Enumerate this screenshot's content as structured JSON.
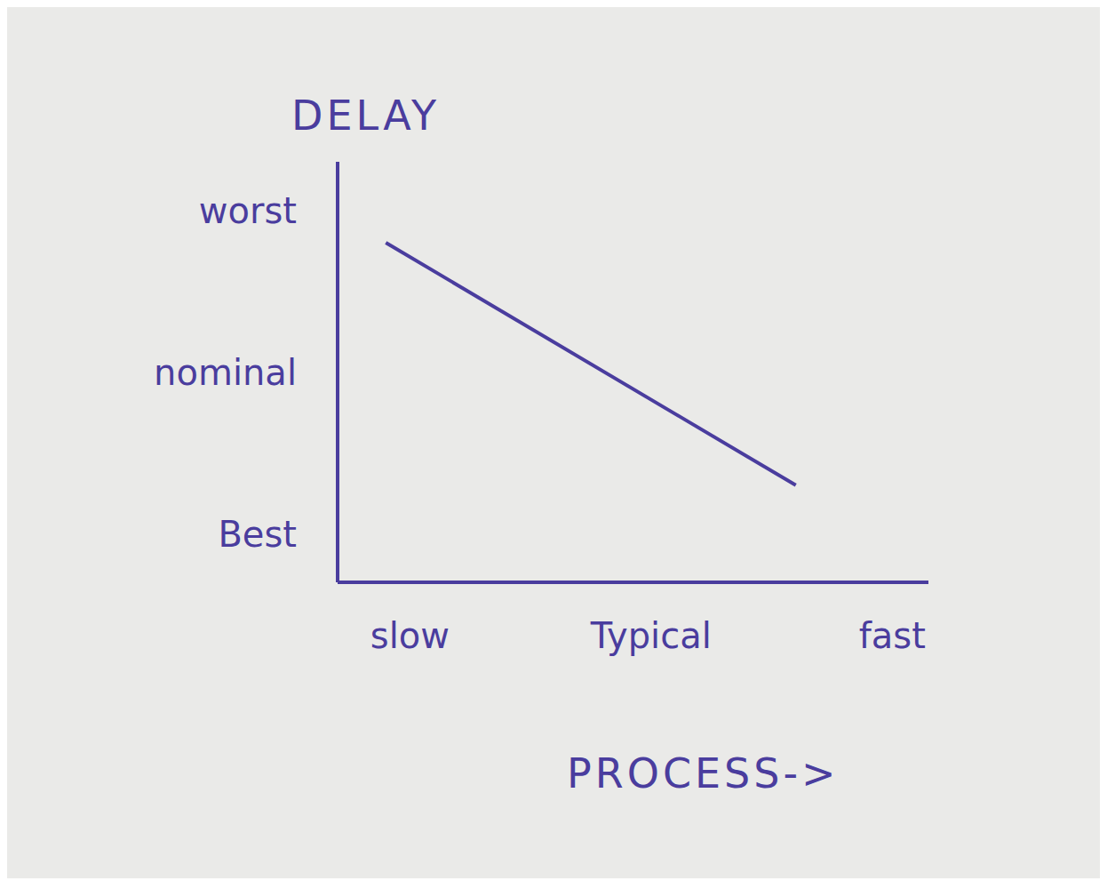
{
  "chart_data": {
    "type": "line",
    "x_label": "PROCESS->",
    "y_label": "DELAY",
    "x": [
      0.9,
      2.6
    ],
    "values": [
      2.8,
      1.3
    ],
    "color": "#4a3d9e",
    "xlim": [
      0.7,
      3.15
    ],
    "xticks": [
      {
        "value": 1,
        "label": "slow"
      },
      {
        "value": 2,
        "label": "Typical"
      },
      {
        "value": 3,
        "label": "fast"
      }
    ],
    "ylim": [
      0.7,
      3.3
    ],
    "yticks": [
      {
        "value": 1,
        "label": "Best"
      },
      {
        "value": 2,
        "label": "nominal"
      },
      {
        "value": 3,
        "label": "worst"
      }
    ],
    "grid": false
  }
}
